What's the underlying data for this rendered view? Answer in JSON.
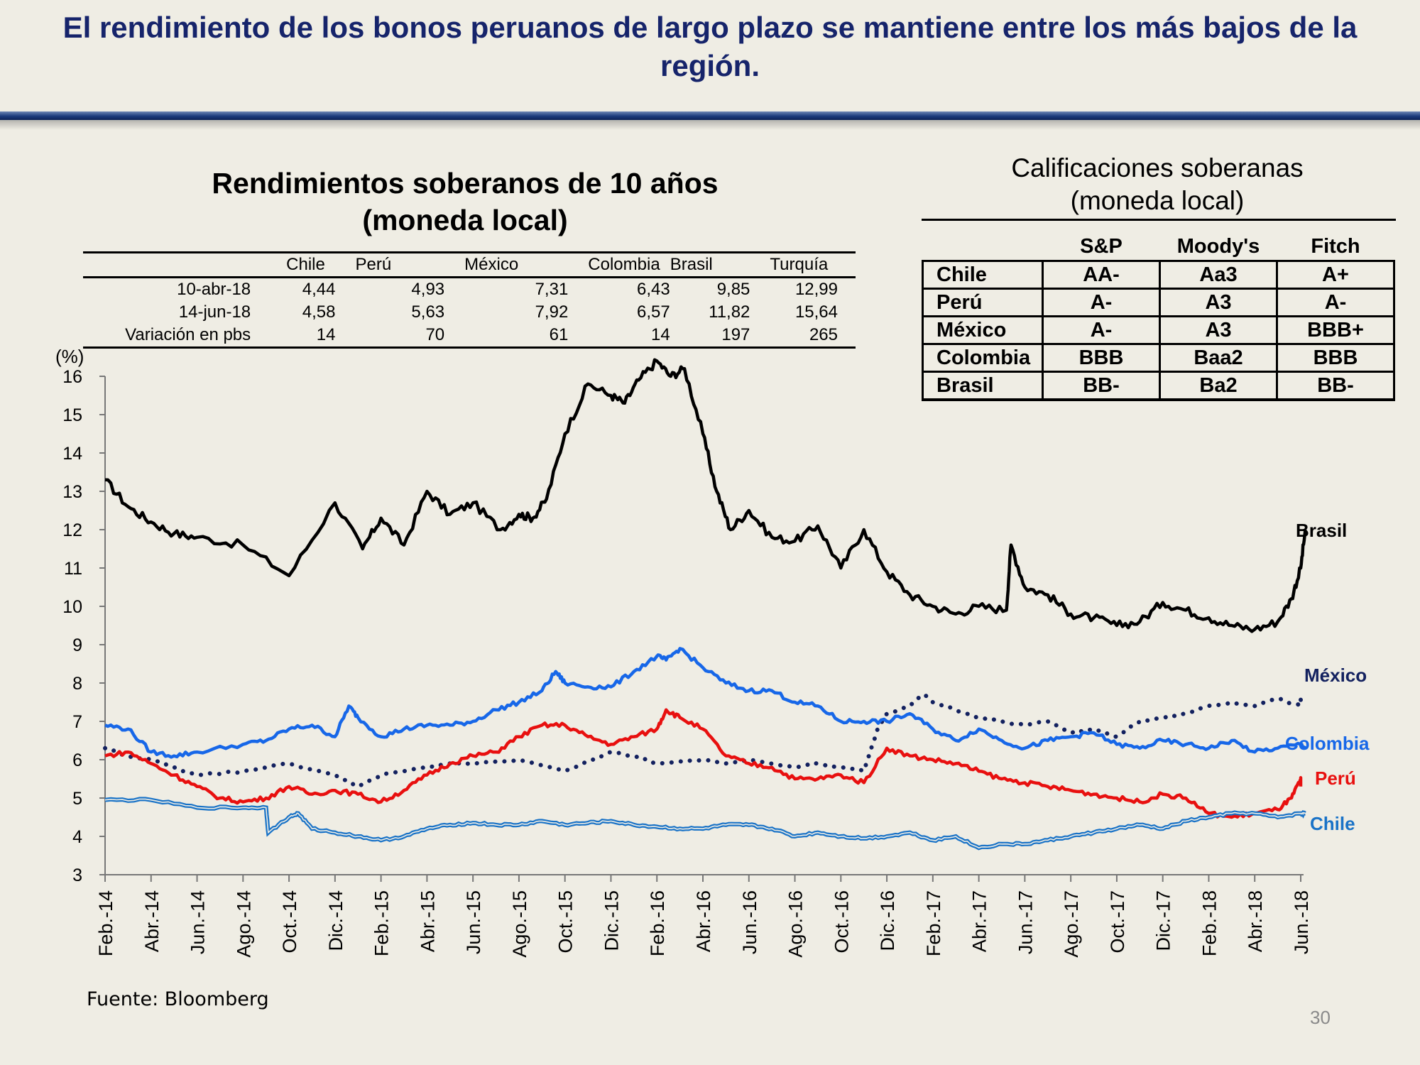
{
  "slide": {
    "title": "El rendimiento de los bonos peruanos de largo plazo se mantiene entre los más bajos de la región.",
    "source": "Fuente: Bloomberg",
    "page_number": "30"
  },
  "yield_table": {
    "title_line1": "Rendimientos soberanos de 10 años",
    "title_line2": "(moneda local)",
    "columns": [
      "Chile",
      "Perú",
      "México",
      "Colombia",
      "Brasil",
      "Turquía"
    ],
    "rows": [
      {
        "label": "10-abr-18",
        "values": [
          "4,44",
          "4,93",
          "7,31",
          "6,43",
          "9,85",
          "12,99"
        ]
      },
      {
        "label": "14-jun-18",
        "values": [
          "4,58",
          "5,63",
          "7,92",
          "6,57",
          "11,82",
          "15,64"
        ]
      },
      {
        "label": "Variación en pbs",
        "values": [
          "14",
          "70",
          "61",
          "14",
          "197",
          "265"
        ]
      }
    ]
  },
  "ratings": {
    "title_line1": "Calificaciones soberanas",
    "title_line2": "(moneda local)",
    "agencies": [
      "S&P",
      "Moody's",
      "Fitch"
    ],
    "rows": [
      {
        "country": "Chile",
        "values": [
          "AA-",
          "Aa3",
          "A+"
        ]
      },
      {
        "country": "Perú",
        "values": [
          "A-",
          "A3",
          "A-"
        ]
      },
      {
        "country": "México",
        "values": [
          "A-",
          "A3",
          "BBB+"
        ]
      },
      {
        "country": "Colombia",
        "values": [
          "BBB",
          "Baa2",
          "BBB"
        ]
      },
      {
        "country": "Brasil",
        "values": [
          "BB-",
          "Ba2",
          "BB-"
        ]
      }
    ]
  },
  "chart_data": {
    "type": "line",
    "title": "Rendimientos soberanos de 10 años (moneda local)",
    "ylabel": "(%)",
    "ylim": [
      3,
      16
    ],
    "yticks": [
      3,
      4,
      5,
      6,
      7,
      8,
      9,
      10,
      11,
      12,
      13,
      14,
      15,
      16
    ],
    "x_ticks": [
      "Feb.-14",
      "Abr.-14",
      "Jun.-14",
      "Ago.-14",
      "Oct.-14",
      "Dic.-14",
      "Feb.-15",
      "Abr.-15",
      "Jun.-15",
      "Ago.-15",
      "Oct.-15",
      "Dic.-15",
      "Feb.-16",
      "Abr.-16",
      "Jun.-16",
      "Ago.-16",
      "Oct.-16",
      "Dic.-16",
      "Feb.-17",
      "Abr.-17",
      "Jun.-17",
      "Ago.-17",
      "Oct.-17",
      "Dic.-17",
      "Feb.-18",
      "Abr.-18",
      "Jun.-18"
    ],
    "series": [
      {
        "name": "Brasil",
        "label": "Brasil",
        "color": "#000000",
        "style": "solid",
        "x": [
          0,
          0.5,
          1,
          1.5,
          2,
          3,
          4,
          5,
          5.6,
          6,
          6.5,
          7,
          7.5,
          8,
          8.6,
          9,
          9.3,
          9.6,
          10,
          10.5,
          11,
          11.3,
          11.6,
          12,
          12.3,
          12.6,
          13,
          13.3,
          13.6,
          14,
          14.5,
          15,
          15.5,
          16,
          16.5,
          17,
          17.5,
          18,
          18.5,
          19,
          19.6,
          19.7,
          20,
          20.5,
          21,
          21.5,
          22,
          22.5,
          23,
          23.5,
          24,
          24.5,
          25,
          25.5,
          25.8,
          26,
          26.1
        ],
        "y": [
          13.3,
          12.6,
          12.2,
          11.9,
          11.8,
          11.6,
          10.8,
          12.7,
          11.5,
          12.3,
          11.6,
          13.0,
          12.4,
          12.7,
          12.0,
          12.4,
          12.3,
          12.8,
          14.5,
          15.8,
          15.5,
          15.3,
          15.9,
          16.4,
          16.0,
          16.2,
          14.5,
          13.0,
          12.0,
          12.5,
          11.8,
          11.7,
          12.1,
          11.0,
          12.0,
          10.9,
          10.3,
          10.0,
          9.8,
          10.0,
          9.9,
          11.6,
          10.5,
          10.3,
          9.8,
          9.7,
          9.5,
          9.6,
          10.1,
          9.9,
          9.7,
          9.5,
          9.4,
          9.6,
          10.2,
          11.0,
          12.0
        ]
      },
      {
        "name": "México",
        "label": "México",
        "color": "#13215f",
        "style": "dotted",
        "x": [
          0,
          0.5,
          1,
          1.5,
          2,
          3,
          4,
          5,
          5.5,
          6,
          7,
          7.5,
          8,
          9,
          10,
          10.6,
          11,
          11.5,
          12,
          13,
          13.5,
          14,
          15,
          15.5,
          16,
          16.5,
          16.8,
          17,
          17.5,
          17.8,
          18,
          18.5,
          19,
          19.5,
          20,
          20.5,
          21,
          21.5,
          22,
          22.5,
          23,
          23.5,
          24,
          24.5,
          25,
          25.5,
          26,
          26
        ],
        "y": [
          6.3,
          6.1,
          6.0,
          5.8,
          5.6,
          5.7,
          5.9,
          5.6,
          5.3,
          5.6,
          5.8,
          5.9,
          5.9,
          6.0,
          5.7,
          6.0,
          6.2,
          6.1,
          5.9,
          6.0,
          5.9,
          6.0,
          5.8,
          5.9,
          5.8,
          5.7,
          6.8,
          7.2,
          7.4,
          7.7,
          7.5,
          7.3,
          7.1,
          7.0,
          6.9,
          7.0,
          6.7,
          6.8,
          6.6,
          7.0,
          7.1,
          7.2,
          7.4,
          7.5,
          7.4,
          7.6,
          7.4,
          7.7
        ]
      },
      {
        "name": "Colombia",
        "label": "Colombia",
        "color": "#1767e8",
        "style": "solid",
        "x": [
          0,
          0.5,
          1,
          1.5,
          2,
          3,
          3.5,
          4,
          4.5,
          5,
          5.3,
          5.5,
          6,
          6.5,
          7,
          7.5,
          8,
          8.5,
          9,
          9.5,
          9.8,
          10,
          10.5,
          11,
          11.5,
          12,
          12.2,
          12.5,
          13,
          13.5,
          14,
          14.5,
          15,
          15.5,
          16,
          16.5,
          17,
          17.5,
          18,
          18.5,
          19,
          19.5,
          20,
          20.5,
          21,
          21.5,
          22,
          22.5,
          23,
          23.5,
          24,
          24.5,
          25,
          25.5,
          26,
          26.1
        ],
        "y": [
          6.9,
          6.8,
          6.2,
          6.1,
          6.2,
          6.4,
          6.5,
          6.8,
          6.9,
          6.6,
          7.4,
          7.1,
          6.6,
          6.8,
          6.9,
          6.9,
          7.0,
          7.3,
          7.5,
          7.8,
          8.3,
          8.0,
          7.9,
          7.9,
          8.3,
          8.7,
          8.6,
          8.9,
          8.4,
          8.0,
          7.8,
          7.8,
          7.5,
          7.4,
          7.0,
          7.0,
          7.0,
          7.2,
          6.8,
          6.5,
          6.8,
          6.5,
          6.3,
          6.5,
          6.6,
          6.7,
          6.4,
          6.3,
          6.5,
          6.4,
          6.3,
          6.5,
          6.2,
          6.3,
          6.4,
          6.3
        ]
      },
      {
        "name": "Perú",
        "label": "Perú",
        "color": "#e8100f",
        "style": "solid",
        "x": [
          0,
          0.5,
          1,
          1.5,
          2,
          2.5,
          3,
          3.5,
          4,
          4.5,
          5,
          5.5,
          6,
          6.5,
          7,
          7.5,
          8,
          8.5,
          9,
          9.5,
          10,
          10.5,
          11,
          11.5,
          12,
          12.2,
          12.5,
          13,
          13.5,
          14,
          14.5,
          15,
          15.5,
          16,
          16.5,
          17,
          17.5,
          18,
          18.5,
          19,
          19.5,
          20,
          20.5,
          21,
          21.5,
          22,
          22.5,
          23,
          23.5,
          24,
          24.5,
          25,
          25.5,
          25.8,
          26,
          26
        ],
        "y": [
          6.1,
          6.2,
          5.9,
          5.6,
          5.3,
          5.0,
          4.9,
          5.0,
          5.3,
          5.1,
          5.2,
          5.1,
          4.9,
          5.2,
          5.6,
          5.9,
          6.1,
          6.2,
          6.6,
          6.9,
          6.9,
          6.6,
          6.4,
          6.6,
          6.8,
          7.3,
          7.1,
          6.8,
          6.1,
          5.9,
          5.8,
          5.5,
          5.5,
          5.6,
          5.4,
          6.3,
          6.1,
          6.0,
          5.9,
          5.7,
          5.5,
          5.4,
          5.3,
          5.2,
          5.1,
          5.0,
          4.9,
          5.1,
          5.0,
          4.6,
          4.5,
          4.6,
          4.7,
          5.0,
          5.5,
          5.3
        ]
      },
      {
        "name": "Chile",
        "label": "Chile",
        "color": "#1a73c7",
        "style": "double",
        "x": [
          0,
          1,
          2,
          3,
          3.5,
          3.55,
          4,
          4.2,
          4.5,
          5,
          5.5,
          6,
          6.5,
          7,
          7.5,
          8,
          8.5,
          9,
          9.5,
          10,
          10.5,
          11,
          11.5,
          12,
          12.5,
          13,
          13.5,
          14,
          14.5,
          15,
          15.5,
          16,
          16.5,
          17,
          17.5,
          18,
          18.5,
          19,
          19.5,
          20,
          20.5,
          21,
          21.5,
          22,
          22.5,
          23,
          23.5,
          24,
          24.5,
          25,
          25.5,
          26,
          26.1
        ],
        "y": [
          4.95,
          4.95,
          4.75,
          4.75,
          4.75,
          4.1,
          4.5,
          4.6,
          4.2,
          4.1,
          4.0,
          3.9,
          4.0,
          4.2,
          4.3,
          4.35,
          4.3,
          4.3,
          4.4,
          4.3,
          4.35,
          4.4,
          4.3,
          4.25,
          4.2,
          4.2,
          4.3,
          4.3,
          4.2,
          4.0,
          4.1,
          4.0,
          3.95,
          4.0,
          4.1,
          3.9,
          4.0,
          3.7,
          3.8,
          3.8,
          3.9,
          4.0,
          4.1,
          4.2,
          4.3,
          4.2,
          4.4,
          4.5,
          4.6,
          4.6,
          4.5,
          4.6,
          4.6
        ]
      }
    ]
  }
}
